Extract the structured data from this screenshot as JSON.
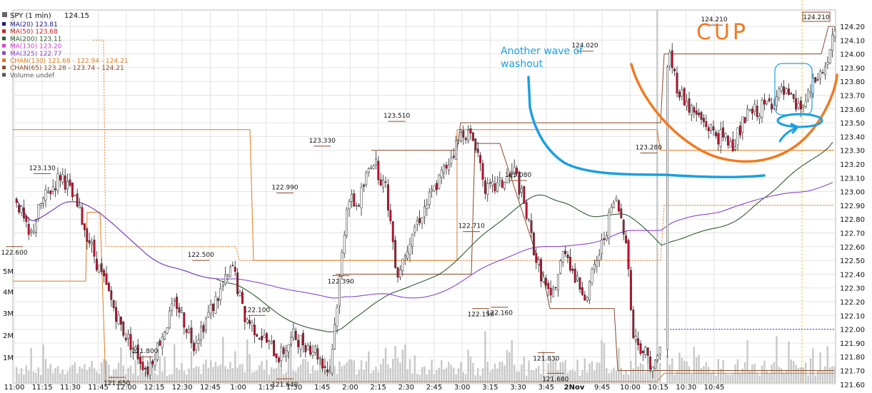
{
  "chart_data": {
    "type": "line",
    "title": "SPY (1 min)",
    "last_price": "124.15",
    "ylim": [
      121.55,
      124.25
    ],
    "y_ticks": [
      "124.20",
      "124.10",
      "124.00",
      "123.90",
      "123.80",
      "123.70",
      "123.60",
      "123.50",
      "123.40",
      "123.30",
      "123.20",
      "123.10",
      "123.00",
      "122.90",
      "122.80",
      "122.70",
      "122.60",
      "122.50",
      "122.40",
      "122.30",
      "122.20",
      "122.10",
      "122.00",
      "121.90",
      "121.80",
      "121.70",
      "121.60"
    ],
    "x_ticks": [
      "11:00",
      "11:15",
      "11:30",
      "11:45",
      "12:00",
      "12:15",
      "12:30",
      "12:45",
      "1:00",
      "1:15",
      "1:30",
      "1:45",
      "2:00",
      "2:15",
      "2:30",
      "2:45",
      "3:00",
      "3:15",
      "3:30",
      "3:45",
      "2Nov",
      "9:45",
      "10:00",
      "10:15",
      "10:30",
      "10:45"
    ],
    "volume_ticks": [
      "5M",
      "4M",
      "3M",
      "2M",
      "1M"
    ],
    "legend": [
      {
        "label": "MA(20)",
        "value": "123.81",
        "color": "#1a1a8c"
      },
      {
        "label": "MA(50)",
        "value": "123.68",
        "color": "#cc2222"
      },
      {
        "label": "MA(200)",
        "value": "123.11",
        "color": "#2f5a2f"
      },
      {
        "label": "MA(130)",
        "value": "123.20",
        "color": "#d040d0"
      },
      {
        "label": "MA(325)",
        "value": "122.77",
        "color": "#8844cc"
      },
      {
        "label": "CHAN(130)",
        "value": "121.68 - 122.94 - 124.21",
        "color": "#e07a20"
      },
      {
        "label": "CHAN(65)",
        "value": "123.28 - 123.74 - 124.21",
        "color": "#8b4a2a"
      },
      {
        "label": "Volume",
        "value": "undef",
        "color": "#555555"
      }
    ],
    "price_labels": [
      {
        "text": "123.130",
        "x": "11:15",
        "y": 123.13
      },
      {
        "text": "122.600",
        "x": "11:00",
        "y": 122.6
      },
      {
        "text": "121.650",
        "x": "11:55",
        "y": 121.65
      },
      {
        "text": "121.800",
        "x": "12:10",
        "y": 121.8
      },
      {
        "text": "122.500",
        "x": "12:40",
        "y": 122.5
      },
      {
        "text": "122.100",
        "x": "1:10",
        "y": 122.1
      },
      {
        "text": "121.640",
        "x": "1:25",
        "y": 121.64
      },
      {
        "text": "122.990",
        "x": "1:35",
        "y": 122.99
      },
      {
        "text": "123.330",
        "x": "1:45",
        "y": 123.33
      },
      {
        "text": "122.390",
        "x": "1:55",
        "y": 122.39
      },
      {
        "text": "123.510",
        "x": "2:25",
        "y": 123.51
      },
      {
        "text": "122.710",
        "x": "3:05",
        "y": 122.71
      },
      {
        "text": "122.150",
        "x": "3:10",
        "y": 122.15
      },
      {
        "text": "122.160",
        "x": "3:20",
        "y": 122.16
      },
      {
        "text": "123.080",
        "x": "3:30",
        "y": 123.08
      },
      {
        "text": "121.830",
        "x": "3:45",
        "y": 121.83
      },
      {
        "text": "121.680",
        "x": "3:50",
        "y": 121.68
      },
      {
        "text": "124.020",
        "x": "9:40",
        "y": 124.02
      },
      {
        "text": "123.280",
        "x": "10:10",
        "y": 123.28
      },
      {
        "text": "124.210",
        "x": "10:45",
        "y": 124.21
      }
    ],
    "annotations": {
      "wave_text": [
        "Another wave of",
        "washout"
      ],
      "cup_text": "CUP"
    },
    "colors": {
      "up_candle": "#ffffff",
      "down_candle": "#c8102e",
      "volume": "#c8c8c8",
      "annotation_blue": "#1c9fe0",
      "annotation_orange": "#f07a22",
      "grid": "#e3e3e3"
    }
  }
}
